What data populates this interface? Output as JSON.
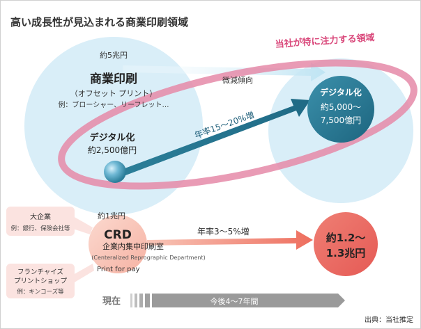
{
  "title": "高い成長性が見込まれる商業印刷領域",
  "focus_label": "当社が特に注力する領域",
  "commercial": {
    "market_size": "約5兆円",
    "name": "商業印刷",
    "sub": "（オフセット プリント）",
    "example": "例：ブローシャー、リーフレット…",
    "trend": "微減傾向"
  },
  "digital_now": {
    "name": "デジタル化",
    "size": "約2,500億円"
  },
  "digital_growth": "年率15〜20%増",
  "digital_future": {
    "name": "デジタル化",
    "size_line1": "約5,000〜",
    "size_line2": "7,500億円"
  },
  "crd": {
    "market_size": "約1兆円",
    "name": "CRD",
    "jp": "企業内集中印刷室",
    "en": "(Centeralized Reprographic Department)",
    "print_for_pay": "Print for pay",
    "growth": "年率3〜5%増",
    "future_line1": "約1.2〜",
    "future_line2": "1.3兆円"
  },
  "enterprise": {
    "title": "大企業",
    "example": "例：銀行、保険会社等"
  },
  "franchise": {
    "title_line1": "フランチャイズ",
    "title_line2": "プリントショップ",
    "example": "例：キンコーズ等"
  },
  "timeline": {
    "now": "現在",
    "future": "今後4〜7年間"
  },
  "source": "出典：当社推定",
  "colors": {
    "light_blue": "#d9eef8",
    "teal": "#2b7b96",
    "teal_dark": "#1f6680",
    "pink": "#e58aa8",
    "salmon": "#f4a394",
    "salmon_dark": "#e8615a",
    "gray": "#9a9a9a"
  }
}
